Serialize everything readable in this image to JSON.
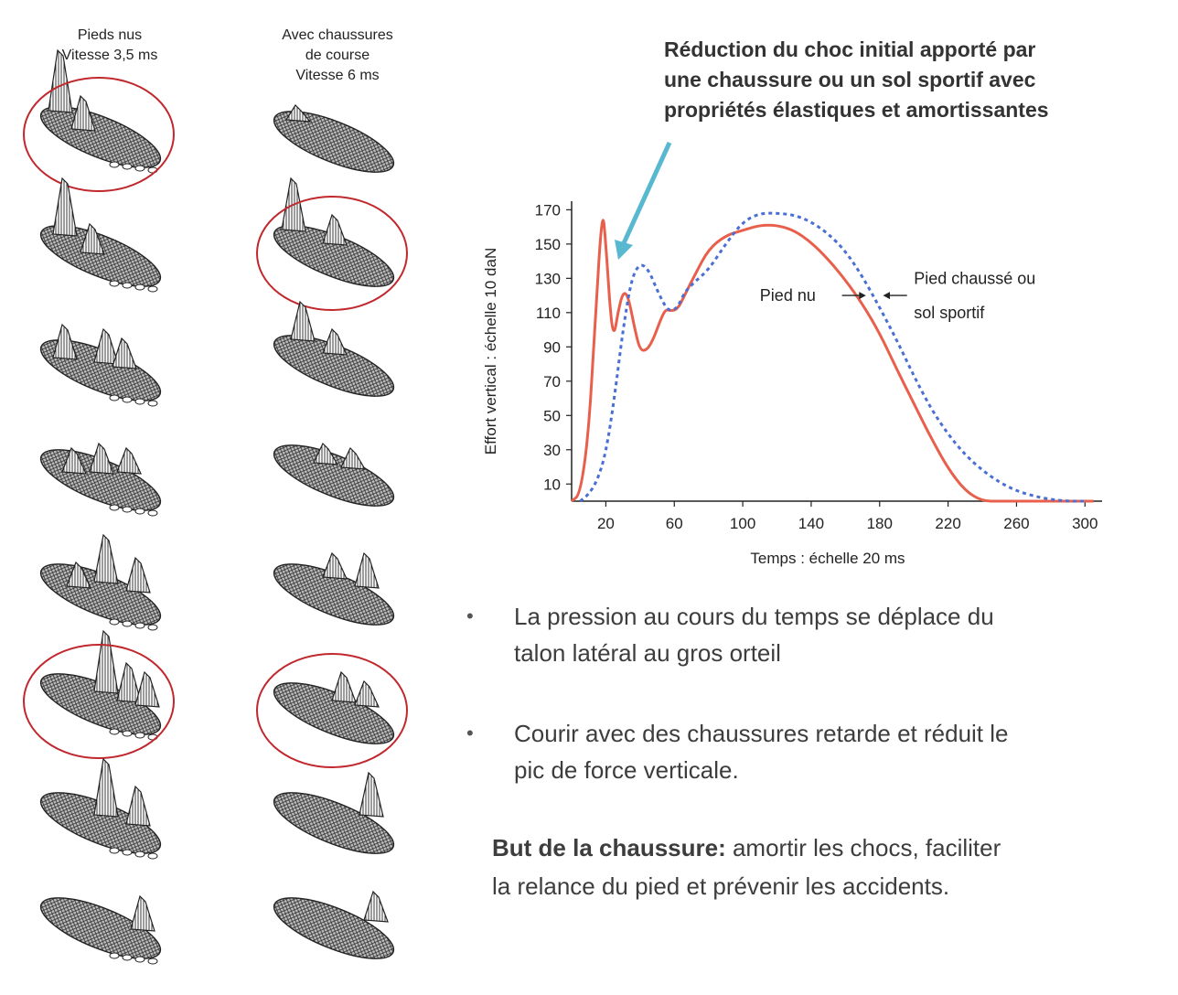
{
  "left_figure": {
    "columns": [
      {
        "title_line1": "Pieds nus",
        "title_line2": "Vitesse 3,5 ms"
      },
      {
        "title_line1": "Avec chaussures",
        "title_line2": "de course",
        "title_line3": "Vitesse 6 ms"
      }
    ],
    "frames_per_column": 8,
    "highlighted_frames": {
      "barefoot": [
        1,
        6
      ],
      "shod": [
        2,
        6
      ]
    },
    "highlight_color": "#c0282d"
  },
  "annotation": {
    "line1": "Réduction du choc initial apporté par",
    "line2": "une chaussure ou un sol sportif avec",
    "line3": "propriétés élastiques et amortissantes",
    "arrow_color": "#58b8cf"
  },
  "chart_data": {
    "type": "line",
    "xlabel": "Temps : échelle 20 ms",
    "ylabel": "Effort vertical : échelle 10 daN",
    "xlim": [
      0,
      310
    ],
    "ylim": [
      0,
      175
    ],
    "x_ticks": [
      20,
      60,
      100,
      140,
      180,
      220,
      260,
      300
    ],
    "y_ticks": [
      10,
      30,
      50,
      70,
      90,
      110,
      130,
      150,
      170
    ],
    "series": [
      {
        "name": "Pied nu",
        "color": "#e8604c",
        "style": "solid",
        "points": [
          [
            0,
            0
          ],
          [
            5,
            4
          ],
          [
            10,
            40
          ],
          [
            14,
            110
          ],
          [
            18,
            172
          ],
          [
            20,
            150
          ],
          [
            23,
            105
          ],
          [
            25,
            97
          ],
          [
            27,
            110
          ],
          [
            30,
            122
          ],
          [
            33,
            120
          ],
          [
            37,
            100
          ],
          [
            40,
            88
          ],
          [
            44,
            88
          ],
          [
            48,
            95
          ],
          [
            52,
            106
          ],
          [
            55,
            112
          ],
          [
            58,
            111
          ],
          [
            62,
            112
          ],
          [
            66,
            120
          ],
          [
            72,
            132
          ],
          [
            80,
            147
          ],
          [
            90,
            155
          ],
          [
            100,
            158
          ],
          [
            110,
            161
          ],
          [
            120,
            161
          ],
          [
            130,
            158
          ],
          [
            140,
            151
          ],
          [
            150,
            141
          ],
          [
            160,
            129
          ],
          [
            170,
            115
          ],
          [
            180,
            98
          ],
          [
            190,
            77
          ],
          [
            200,
            57
          ],
          [
            210,
            37
          ],
          [
            220,
            19
          ],
          [
            230,
            6
          ],
          [
            240,
            0
          ],
          [
            250,
            0
          ],
          [
            305,
            0
          ]
        ]
      },
      {
        "name": "Pied chaussé ou sol sportif",
        "color": "#4a6fd4",
        "style": "dashed",
        "points": [
          [
            5,
            0
          ],
          [
            10,
            4
          ],
          [
            15,
            12
          ],
          [
            20,
            28
          ],
          [
            25,
            60
          ],
          [
            30,
            100
          ],
          [
            35,
            130
          ],
          [
            40,
            139
          ],
          [
            45,
            135
          ],
          [
            50,
            123
          ],
          [
            55,
            113
          ],
          [
            58,
            111
          ],
          [
            62,
            113
          ],
          [
            66,
            122
          ],
          [
            72,
            128
          ],
          [
            80,
            135
          ],
          [
            90,
            150
          ],
          [
            100,
            163
          ],
          [
            110,
            168
          ],
          [
            120,
            168
          ],
          [
            130,
            167
          ],
          [
            140,
            163
          ],
          [
            150,
            156
          ],
          [
            160,
            146
          ],
          [
            170,
            131
          ],
          [
            180,
            113
          ],
          [
            190,
            94
          ],
          [
            200,
            73
          ],
          [
            210,
            54
          ],
          [
            220,
            39
          ],
          [
            230,
            27
          ],
          [
            240,
            18
          ],
          [
            250,
            11
          ],
          [
            260,
            6
          ],
          [
            270,
            3
          ],
          [
            280,
            1
          ],
          [
            290,
            0
          ],
          [
            300,
            0
          ]
        ]
      }
    ],
    "annotations": [
      {
        "text": "Pied nu",
        "points_to": "Pied nu"
      },
      {
        "text_line1": "Pied chaussé ou",
        "text_line2": "sol sportif",
        "points_to": "Pied chaussé ou sol sportif"
      }
    ]
  },
  "bullets": [
    {
      "line1": "La pression au cours du temps se déplace du",
      "line2": "talon latéral au gros orteil"
    },
    {
      "line1": "Courir avec des chaussures retarde et réduit le",
      "line2": "pic de force verticale."
    }
  ],
  "goal": {
    "label": "But de la chaussure:",
    "text_line1": " amortir les chocs, faciliter",
    "text_line2": "la relance du pied et prévenir les accidents."
  }
}
